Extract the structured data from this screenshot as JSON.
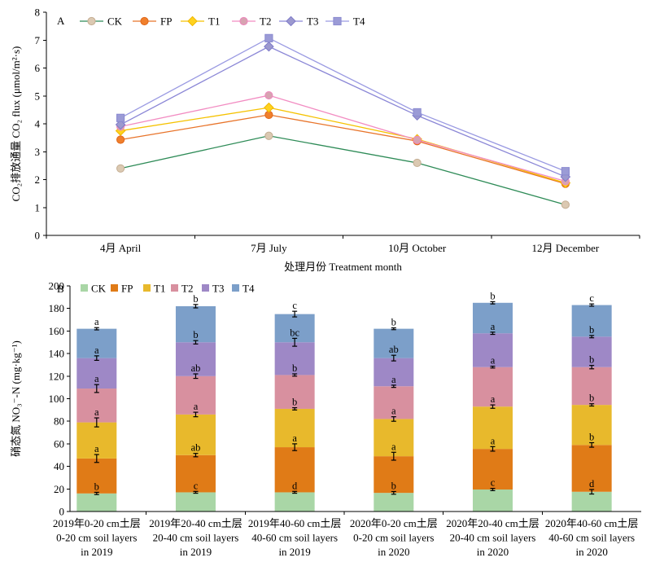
{
  "chart_data": [
    {
      "panel_label": "A",
      "type": "line",
      "categories": [
        "4月 April",
        "7月 July",
        "10月 October",
        "12月 December"
      ],
      "xlabel": "处理月份 Treatment month",
      "ylabel": "CO₂排放通量 CO₂ flux (μmol/m²·s)",
      "ylim": [
        0,
        8
      ],
      "yticks": [
        0,
        1,
        2,
        3,
        4,
        5,
        6,
        7,
        8
      ],
      "grid": false,
      "legend": "top-left",
      "series": [
        {
          "name": "CK",
          "values": [
            2.4,
            3.57,
            2.6,
            1.1
          ],
          "color": "#2e8b57",
          "marker": "circle",
          "marker_fill": "#dbc9b2",
          "marker_stroke": "#c4ad92"
        },
        {
          "name": "FP",
          "values": [
            3.43,
            4.32,
            3.38,
            1.85
          ],
          "color": "#e8742a",
          "marker": "circle",
          "marker_fill": "#f07f2c",
          "marker_stroke": "#e0671a"
        },
        {
          "name": "T1",
          "values": [
            3.75,
            4.58,
            3.45,
            1.88
          ],
          "color": "#f5c200",
          "marker": "diamond",
          "marker_fill": "#ffd21f",
          "marker_stroke": "#f0b800"
        },
        {
          "name": "T2",
          "values": [
            3.9,
            5.02,
            3.42,
            1.94
          ],
          "color": "#f28cc2",
          "marker": "circle",
          "marker_fill": "#d7a3b1",
          "marker_stroke": "#ee86bd"
        },
        {
          "name": "T3",
          "values": [
            3.97,
            6.77,
            4.3,
            2.1
          ],
          "color": "#8a86d6",
          "marker": "diamond",
          "marker_fill": "#9c99cf",
          "marker_stroke": "#7e7ac9"
        },
        {
          "name": "T4",
          "values": [
            4.21,
            7.07,
            4.41,
            2.3
          ],
          "color": "#9a9ae2",
          "marker": "square",
          "marker_fill": "#9b9bd6",
          "marker_stroke": "#8a8ad0"
        }
      ]
    },
    {
      "panel_label": "B",
      "type": "bar",
      "stacked": true,
      "categories": [
        [
          "2019年0-20 cm土层",
          "0-20 cm soil layers",
          "in 2019"
        ],
        [
          "2019年20-40 cm土层",
          "20-40 cm soil layers",
          "in 2019"
        ],
        [
          "2019年40-60 cm土层",
          "40-60 cm soil layers",
          "in 2019"
        ],
        [
          "2020年0-20 cm土层",
          "0-20 cm soil layers",
          "in 2020"
        ],
        [
          "2020年20-40 cm土层",
          "20-40 cm soil layers",
          "in 2020"
        ],
        [
          "2020年40-60 cm土层",
          "40-60 cm soil layers",
          "in 2020"
        ]
      ],
      "ylabel": "硝态氮 NO₃⁻-N (mg·kg⁻¹)",
      "ylim": [
        0,
        200
      ],
      "yticks": [
        0,
        20,
        40,
        60,
        80,
        100,
        120,
        140,
        160,
        180,
        200
      ],
      "grid": false,
      "legend": "top-left",
      "series": [
        {
          "name": "CK",
          "values": [
            16,
            17,
            17,
            16.5,
            19.5,
            17.5
          ],
          "errors": [
            1,
            0.8,
            0.8,
            1.2,
            1,
            2
          ],
          "letters": [
            "b",
            "c",
            "d",
            "b",
            "c",
            "d"
          ],
          "color": "#a9d6a6"
        },
        {
          "name": "FP",
          "values": [
            31,
            33,
            40,
            32.5,
            36,
            41.5
          ],
          "errors": [
            3.5,
            1.5,
            3,
            3.5,
            2,
            2
          ],
          "letters": [
            "a",
            "ab",
            "a",
            "a",
            "a",
            "b"
          ],
          "color": "#e07b17"
        },
        {
          "name": "T1",
          "values": [
            32,
            36,
            34,
            33,
            37.5,
            35.5
          ],
          "errors": [
            4,
            2,
            1,
            2,
            1.5,
            1
          ],
          "letters": [
            "a",
            "a",
            "b",
            "a",
            "a",
            "b"
          ],
          "color": "#e8b92c"
        },
        {
          "name": "T2",
          "values": [
            30,
            34,
            30,
            29,
            35,
            33.5
          ],
          "errors": [
            3.5,
            2,
            1,
            1,
            0.8,
            1.5
          ],
          "letters": [
            "a",
            "ab",
            "b",
            "a",
            "a",
            "b"
          ],
          "color": "#d8909f"
        },
        {
          "name": "T3",
          "values": [
            27,
            30,
            29,
            25,
            30,
            27
          ],
          "errors": [
            2,
            1.5,
            3.5,
            2.5,
            1,
            1
          ],
          "letters": [
            "a",
            "b",
            "bc",
            "ab",
            "a",
            "b"
          ],
          "color": "#9e88c6"
        },
        {
          "name": "T4",
          "values": [
            26,
            32,
            25,
            26,
            27,
            28
          ],
          "errors": [
            1,
            1.5,
            2.5,
            0.8,
            1,
            1
          ],
          "letters": [
            "a",
            "b",
            "c",
            "b",
            "b",
            "c"
          ],
          "color": "#7c9fc9"
        }
      ]
    }
  ]
}
